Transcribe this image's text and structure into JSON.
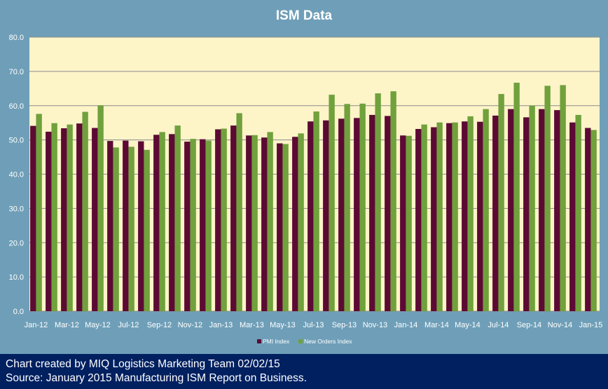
{
  "footer": {
    "line1": "Chart created by MIQ Logistics Marketing Team 02/02/15",
    "line2": "Source: January 2015 Manufacturing ISM Report on Business."
  },
  "colors": {
    "background": "#6f9fb8",
    "plot_area": "#fdf4c8",
    "pmi": "#5c0a34",
    "new_orders": "#70a13c",
    "footer": "#002060"
  },
  "chart_data": {
    "type": "bar",
    "title": "ISM Data",
    "ylim": [
      0,
      80
    ],
    "yticks": [
      "0.0",
      "10.0",
      "20.0",
      "30.0",
      "40.0",
      "50.0",
      "60.0",
      "70.0",
      "80.0"
    ],
    "grid": true,
    "legend_position": "bottom",
    "categories": [
      "Jan-12",
      "Feb-12",
      "Mar-12",
      "Apr-12",
      "May-12",
      "Jun-12",
      "Jul-12",
      "Aug-12",
      "Sep-12",
      "Oct-12",
      "Nov-12",
      "Dec-12",
      "Jan-13",
      "Feb-13",
      "Mar-13",
      "Apr-13",
      "May-13",
      "Jun-13",
      "Jul-13",
      "Aug-13",
      "Sep-13",
      "Oct-13",
      "Nov-13",
      "Dec-13",
      "Jan-14",
      "Feb-14",
      "Mar-14",
      "Apr-14",
      "May-14",
      "Jun-14",
      "Jul-14",
      "Aug-14",
      "Sep-14",
      "Oct-14",
      "Nov-14",
      "Dec-14",
      "Jan-15"
    ],
    "tick_labels": [
      "Jan-12",
      "Mar-12",
      "May-12",
      "Jul-12",
      "Sep-12",
      "Nov-12",
      "Jan-13",
      "Mar-13",
      "May-13",
      "Jul-13",
      "Sep-13",
      "Nov-13",
      "Jan-14",
      "Mar-14",
      "May-14",
      "Jul-14",
      "Sep-14",
      "Nov-14",
      "Jan-15"
    ],
    "series": [
      {
        "name": "PMI Index",
        "values": [
          54.1,
          52.4,
          53.4,
          54.8,
          53.5,
          49.7,
          49.8,
          49.6,
          51.5,
          51.7,
          49.5,
          50.2,
          53.1,
          54.2,
          51.3,
          50.7,
          49.0,
          50.9,
          55.4,
          55.7,
          56.2,
          56.4,
          57.3,
          57.0,
          51.3,
          53.2,
          53.7,
          54.9,
          55.4,
          55.3,
          57.1,
          59.0,
          56.6,
          59.0,
          58.7,
          55.1,
          53.5
        ]
      },
      {
        "name": "New Orders Index",
        "values": [
          57.6,
          54.9,
          54.5,
          58.2,
          60.1,
          47.8,
          48.0,
          47.1,
          52.3,
          54.2,
          50.3,
          49.8,
          53.3,
          57.8,
          51.4,
          52.3,
          48.8,
          51.9,
          58.3,
          63.2,
          60.5,
          60.6,
          63.6,
          64.2,
          51.2,
          54.5,
          55.1,
          55.1,
          56.9,
          59.0,
          63.4,
          66.7,
          60.0,
          65.8,
          66.0,
          57.3,
          52.9
        ]
      }
    ]
  }
}
